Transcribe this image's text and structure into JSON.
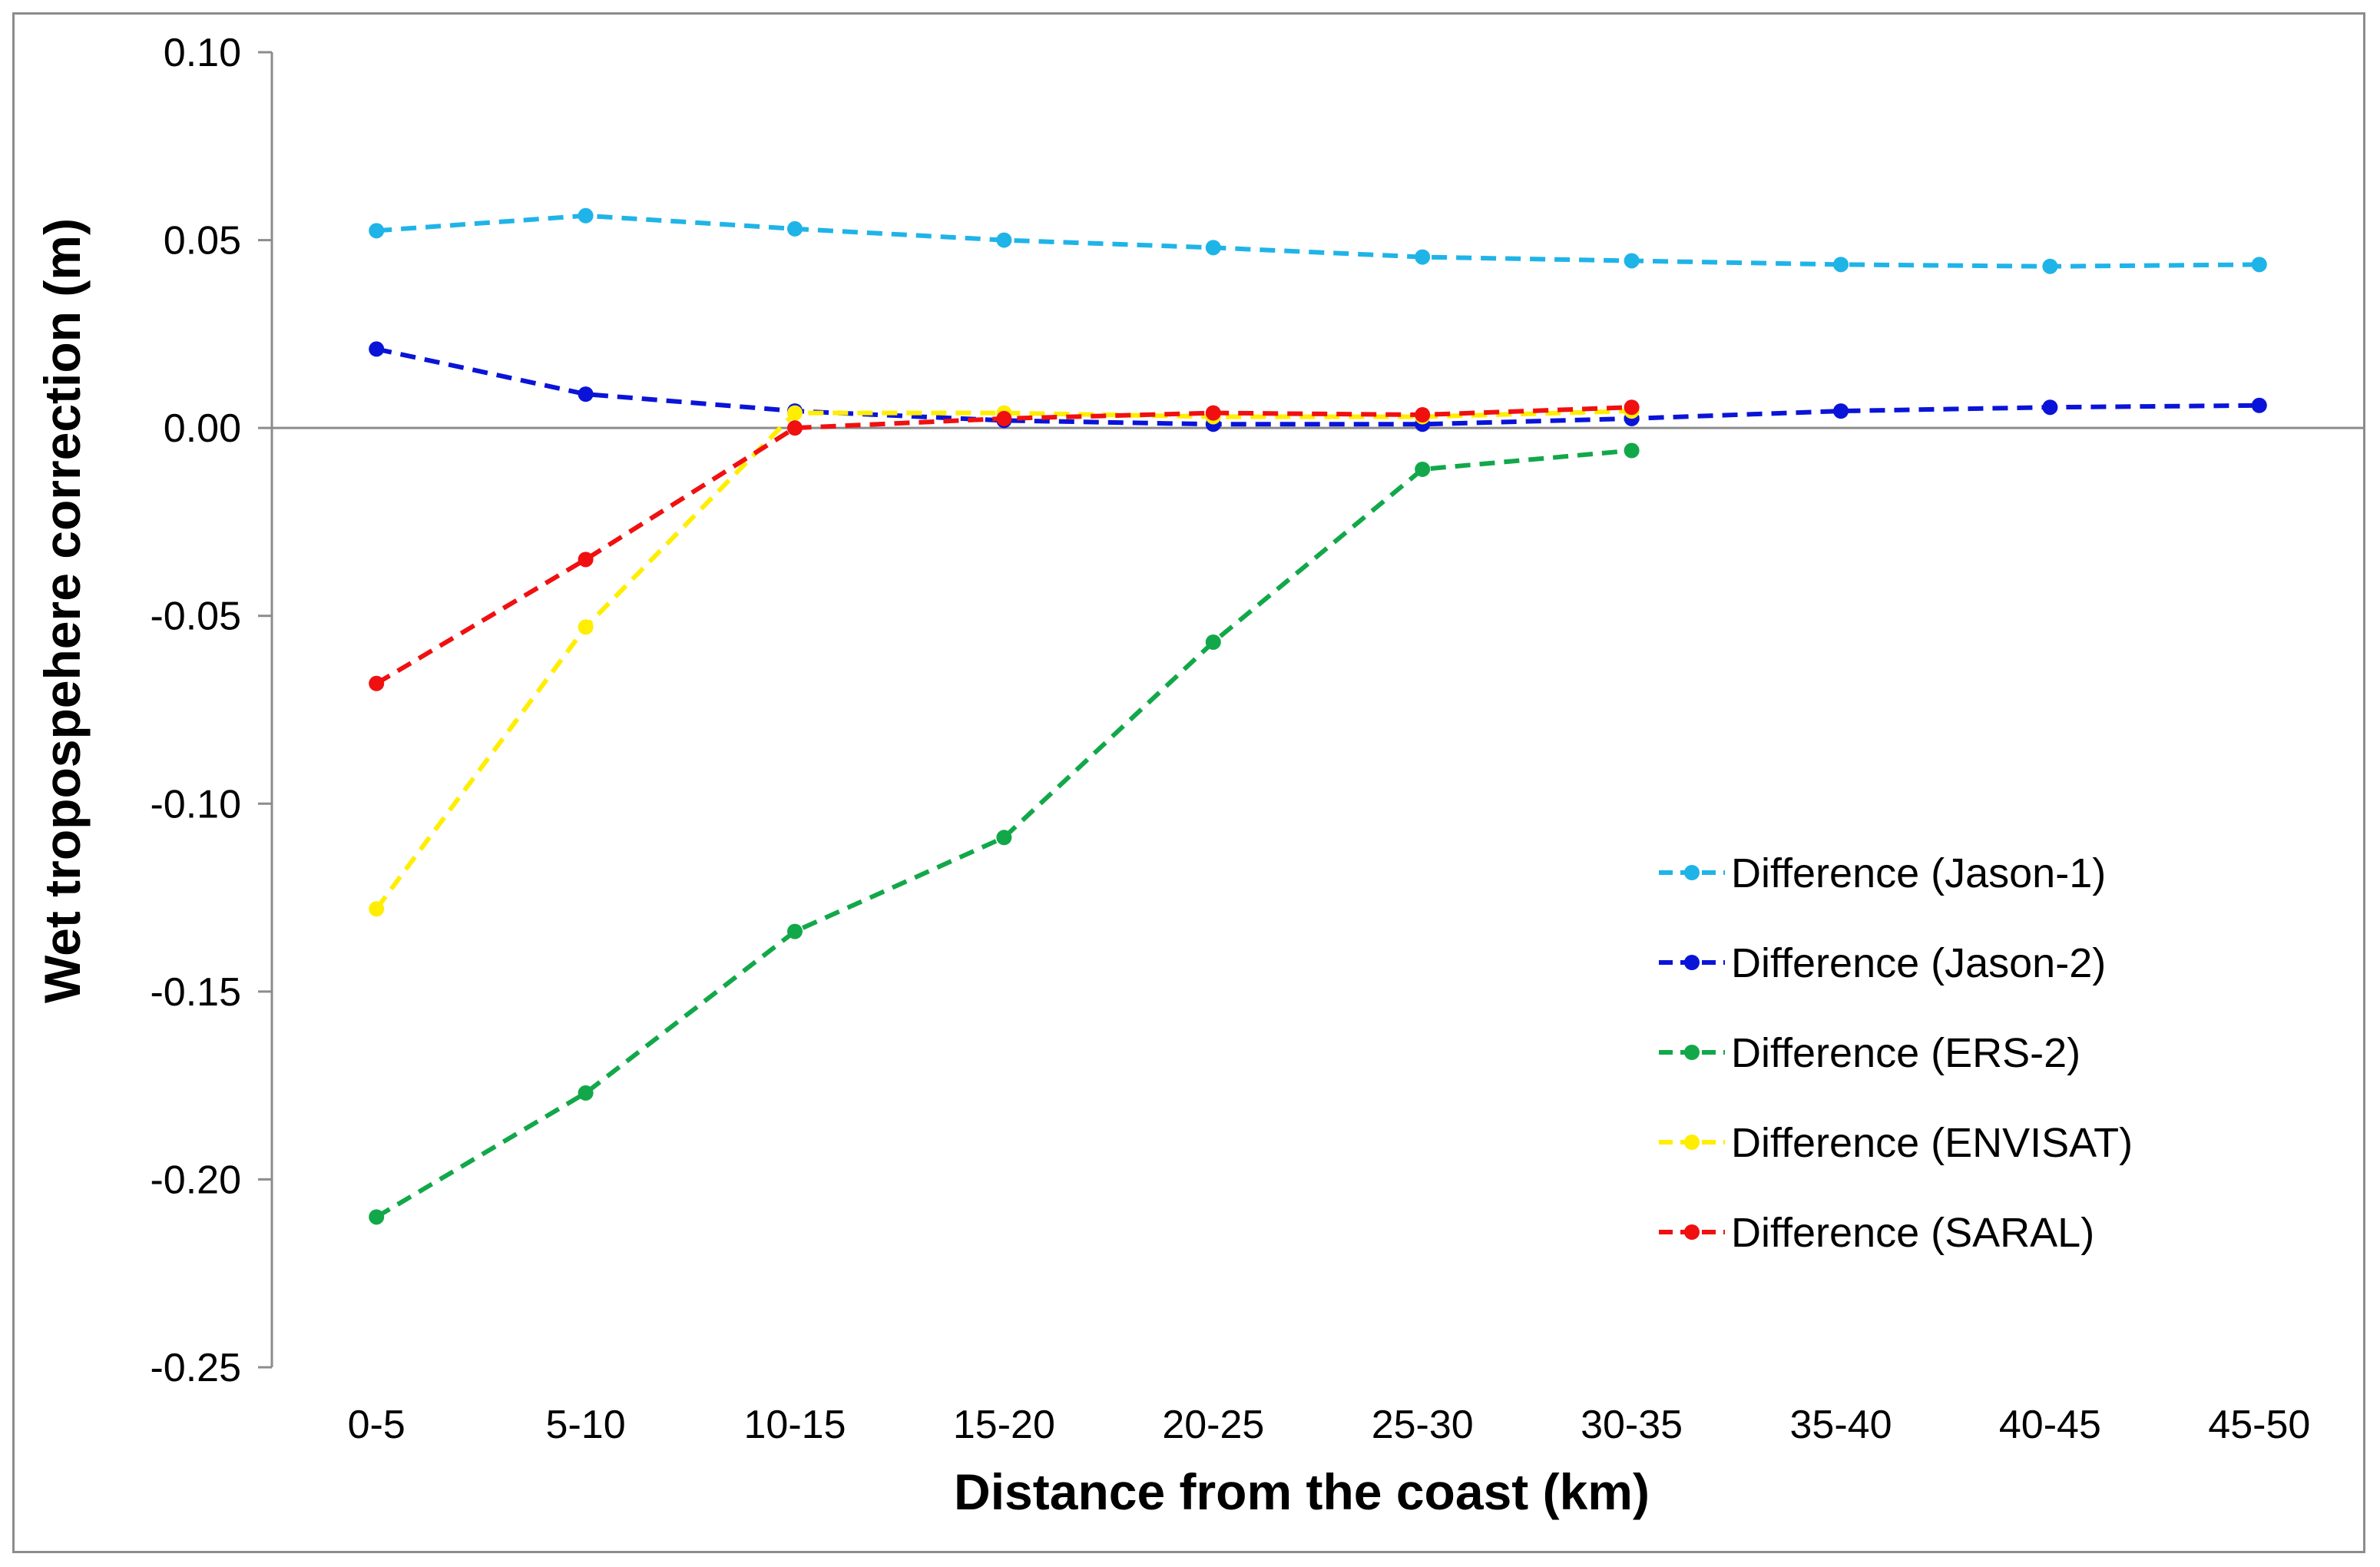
{
  "chart_data": {
    "type": "line",
    "title": "",
    "xlabel": "Distance from the coast (km)",
    "ylabel": "Wet tropospehere correction (m)",
    "ylim": [
      -0.25,
      0.1
    ],
    "yticks": [
      "0.10",
      "0.05",
      "0.00",
      "-0.05",
      "-0.10",
      "-0.15",
      "-0.20",
      "-0.25"
    ],
    "ytick_values": [
      0.1,
      0.05,
      0.0,
      -0.05,
      -0.1,
      -0.15,
      -0.2,
      -0.25
    ],
    "categories": [
      "0-5",
      "5-10",
      "10-15",
      "15-20",
      "20-25",
      "25-30",
      "30-35",
      "35-40",
      "40-45",
      "45-50"
    ],
    "legend_position": "right-middle",
    "grid": false,
    "series": [
      {
        "name": "Difference (Jason-1)",
        "color": "#1fb4e8",
        "values": [
          0.0525,
          0.0565,
          0.053,
          0.05,
          0.048,
          0.0455,
          0.0445,
          0.0435,
          0.043,
          0.0435
        ]
      },
      {
        "name": "Difference (Jason-2)",
        "color": "#0a14d8",
        "values": [
          0.021,
          0.009,
          0.0045,
          0.002,
          0.001,
          0.001,
          0.0025,
          0.0045,
          0.0055,
          0.006
        ]
      },
      {
        "name": "Difference (ERS-2)",
        "color": "#12a84a",
        "values": [
          -0.21,
          -0.177,
          -0.134,
          -0.109,
          -0.057,
          -0.011,
          -0.006,
          null,
          null,
          null
        ]
      },
      {
        "name": "Difference (ENVISAT)",
        "color": "#ffee00",
        "values": [
          -0.128,
          -0.053,
          0.004,
          0.004,
          0.003,
          0.003,
          0.0045,
          null,
          null,
          null
        ]
      },
      {
        "name": "Difference (SARAL)",
        "color": "#f01010",
        "values": [
          -0.068,
          -0.035,
          0.0,
          0.0025,
          0.004,
          0.0035,
          0.0055,
          null,
          null,
          null
        ]
      }
    ]
  }
}
